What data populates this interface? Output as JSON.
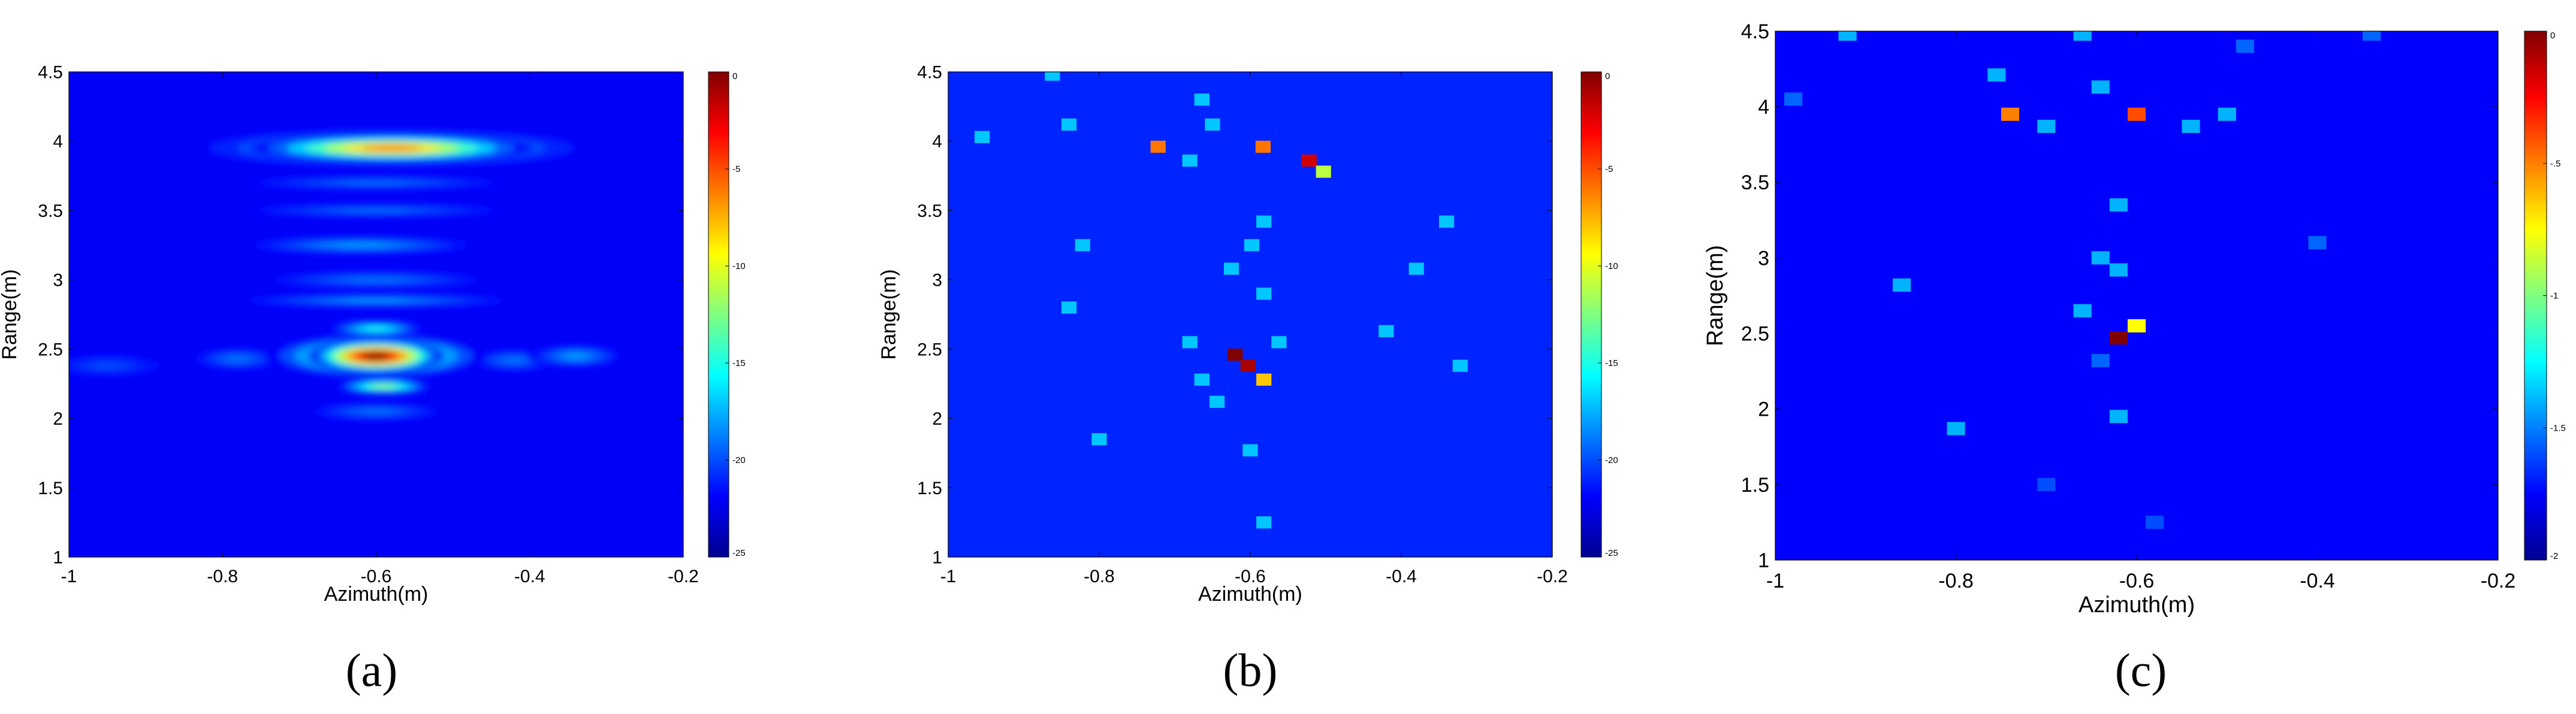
{
  "captions": [
    "(a)",
    "(b)",
    "(c)"
  ],
  "chart_data": [
    {
      "type": "heatmap",
      "title": "",
      "xlabel": "Azimuth(m)",
      "ylabel": "Range(m)",
      "xlim": [
        -1,
        -0.2
      ],
      "ylim": [
        1,
        4.5
      ],
      "xticks": [
        -1,
        -0.8,
        -0.6,
        -0.4,
        -0.2
      ],
      "xtick_labels": [
        "-1",
        "-0.8",
        "-0.6",
        "-0.4",
        "-0.2"
      ],
      "yticks": [
        1,
        1.5,
        2,
        2.5,
        3,
        3.5,
        4,
        4.5
      ],
      "ytick_labels": [
        "1",
        "1.5",
        "2",
        "2.5",
        "3",
        "3.5",
        "4",
        "4.5"
      ],
      "colorbar": {
        "range": [
          -25,
          0
        ],
        "colormap": "jet",
        "ticks": [
          0,
          -5,
          -10,
          -15,
          -20,
          -25
        ],
        "tick_labels": [
          "0",
          "-5",
          "-10",
          "-15",
          "-20",
          "-25"
        ]
      },
      "background_db": -22,
      "blobs": [
        {
          "x": -0.6,
          "y": 2.45,
          "sx": 0.055,
          "sy": 0.075,
          "db": 0
        },
        {
          "x": -0.6,
          "y": 2.45,
          "sx": 0.09,
          "sy": 0.1,
          "db": -10
        },
        {
          "x": -0.59,
          "y": 2.23,
          "sx": 0.04,
          "sy": 0.035,
          "db": -12
        },
        {
          "x": -0.6,
          "y": 2.65,
          "sx": 0.04,
          "sy": 0.035,
          "db": -15
        },
        {
          "x": -0.58,
          "y": 3.95,
          "sx": 0.115,
          "sy": 0.06,
          "db": -6
        },
        {
          "x": -0.58,
          "y": 3.95,
          "sx": 0.17,
          "sy": 0.09,
          "db": -16
        },
        {
          "x": -0.62,
          "y": 3.25,
          "sx": 0.1,
          "sy": 0.04,
          "db": -18
        },
        {
          "x": -0.6,
          "y": 3.0,
          "sx": 0.1,
          "sy": 0.04,
          "db": -19
        },
        {
          "x": -0.6,
          "y": 2.85,
          "sx": 0.12,
          "sy": 0.03,
          "db": -18
        },
        {
          "x": -0.34,
          "y": 2.45,
          "sx": 0.04,
          "sy": 0.05,
          "db": -18
        },
        {
          "x": -0.42,
          "y": 2.42,
          "sx": 0.04,
          "sy": 0.05,
          "db": -19
        },
        {
          "x": -0.78,
          "y": 2.43,
          "sx": 0.04,
          "sy": 0.05,
          "db": -19
        },
        {
          "x": -0.95,
          "y": 2.38,
          "sx": 0.05,
          "sy": 0.05,
          "db": -20
        },
        {
          "x": -0.6,
          "y": 2.05,
          "sx": 0.06,
          "sy": 0.04,
          "db": -19
        },
        {
          "x": -0.6,
          "y": 3.5,
          "sx": 0.12,
          "sy": 0.03,
          "db": -19
        },
        {
          "x": -0.6,
          "y": 3.7,
          "sx": 0.12,
          "sy": 0.03,
          "db": -19
        }
      ]
    },
    {
      "type": "heatmap",
      "title": "",
      "xlabel": "Azimuth(m)",
      "ylabel": "Range(m)",
      "xlim": [
        -1,
        -0.2
      ],
      "ylim": [
        1,
        4.5
      ],
      "xticks": [
        -1,
        -0.8,
        -0.6,
        -0.4,
        -0.2
      ],
      "xtick_labels": [
        "-1",
        "-0.8",
        "-0.6",
        "-0.4",
        "-0.2"
      ],
      "yticks": [
        1,
        1.5,
        2,
        2.5,
        3,
        3.5,
        4,
        4.5
      ],
      "ytick_labels": [
        "1",
        "1.5",
        "2",
        "2.5",
        "3",
        "3.5",
        "4",
        "4.5"
      ],
      "colorbar": {
        "range": [
          -25,
          0
        ],
        "colormap": "jet",
        "ticks": [
          0,
          -5,
          -10,
          -15,
          -20,
          -25
        ],
        "tick_labels": [
          "0",
          "-5",
          "-10",
          "-15",
          "-20",
          "-25"
        ]
      },
      "background_db": -21,
      "points": [
        {
          "x": -0.862,
          "y": 4.48,
          "db": -17
        },
        {
          "x": -0.664,
          "y": 4.3,
          "db": -17
        },
        {
          "x": -0.84,
          "y": 4.12,
          "db": -17
        },
        {
          "x": -0.65,
          "y": 4.12,
          "db": -17
        },
        {
          "x": -0.955,
          "y": 4.03,
          "db": -17
        },
        {
          "x": -0.722,
          "y": 3.96,
          "db": -6
        },
        {
          "x": -0.583,
          "y": 3.96,
          "db": -6
        },
        {
          "x": -0.68,
          "y": 3.86,
          "db": -17
        },
        {
          "x": -0.522,
          "y": 3.86,
          "db": -2
        },
        {
          "x": -0.503,
          "y": 3.78,
          "db": -11
        },
        {
          "x": -0.582,
          "y": 3.42,
          "db": -17
        },
        {
          "x": -0.34,
          "y": 3.42,
          "db": -17
        },
        {
          "x": -0.822,
          "y": 3.25,
          "db": -17
        },
        {
          "x": -0.598,
          "y": 3.25,
          "db": -17
        },
        {
          "x": -0.625,
          "y": 3.08,
          "db": -17
        },
        {
          "x": -0.38,
          "y": 3.08,
          "db": -17
        },
        {
          "x": -0.582,
          "y": 2.9,
          "db": -17
        },
        {
          "x": -0.84,
          "y": 2.8,
          "db": -17
        },
        {
          "x": -0.42,
          "y": 2.63,
          "db": -17
        },
        {
          "x": -0.68,
          "y": 2.55,
          "db": -17
        },
        {
          "x": -0.562,
          "y": 2.55,
          "db": -17
        },
        {
          "x": -0.62,
          "y": 2.46,
          "db": 0
        },
        {
          "x": -0.603,
          "y": 2.38,
          "db": -1
        },
        {
          "x": -0.322,
          "y": 2.38,
          "db": -17
        },
        {
          "x": -0.664,
          "y": 2.28,
          "db": -17
        },
        {
          "x": -0.582,
          "y": 2.28,
          "db": -8
        },
        {
          "x": -0.644,
          "y": 2.12,
          "db": -17
        },
        {
          "x": -0.8,
          "y": 1.85,
          "db": -17
        },
        {
          "x": -0.6,
          "y": 1.77,
          "db": -17
        },
        {
          "x": -0.582,
          "y": 1.25,
          "db": -17
        }
      ]
    },
    {
      "type": "heatmap",
      "title": "",
      "xlabel": "Azimuth(m)",
      "ylabel": "Range(m)",
      "xlim": [
        -1,
        -0.2
      ],
      "ylim": [
        1,
        4.5
      ],
      "xticks": [
        -1,
        -0.8,
        -0.6,
        -0.4,
        -0.2
      ],
      "xtick_labels": [
        "-1",
        "-0.8",
        "-0.6",
        "-0.4",
        "-0.2"
      ],
      "yticks": [
        1,
        1.5,
        2,
        2.5,
        3,
        3.5,
        4,
        4.5
      ],
      "ytick_labels": [
        "1",
        "1.5",
        "2",
        "2.5",
        "3",
        "3.5",
        "4",
        "4.5"
      ],
      "colorbar": {
        "range": [
          -2,
          0
        ],
        "colormap": "jet",
        "ticks": [
          0,
          -0.5,
          -1,
          -1.5,
          -2
        ],
        "tick_labels": [
          "0",
          "-.5",
          "-1",
          "-1.5",
          "-2"
        ]
      },
      "background_db": -1.75,
      "points": [
        {
          "x": -0.92,
          "y": 4.48,
          "db": -1.4
        },
        {
          "x": -0.66,
          "y": 4.48,
          "db": -1.4
        },
        {
          "x": -0.34,
          "y": 4.48,
          "db": -1.55
        },
        {
          "x": -0.48,
          "y": 4.4,
          "db": -1.55
        },
        {
          "x": -0.755,
          "y": 4.21,
          "db": -1.4
        },
        {
          "x": -0.64,
          "y": 4.13,
          "db": -1.4
        },
        {
          "x": -0.98,
          "y": 4.05,
          "db": -1.55
        },
        {
          "x": -0.74,
          "y": 3.95,
          "db": -0.5
        },
        {
          "x": -0.6,
          "y": 3.95,
          "db": -0.4
        },
        {
          "x": -0.5,
          "y": 3.95,
          "db": -1.4
        },
        {
          "x": -0.7,
          "y": 3.87,
          "db": -1.4
        },
        {
          "x": -0.54,
          "y": 3.87,
          "db": -1.4
        },
        {
          "x": -0.62,
          "y": 3.35,
          "db": -1.4
        },
        {
          "x": -0.4,
          "y": 3.1,
          "db": -1.55
        },
        {
          "x": -0.64,
          "y": 3.0,
          "db": -1.4
        },
        {
          "x": -0.62,
          "y": 2.92,
          "db": -1.4
        },
        {
          "x": -0.86,
          "y": 2.82,
          "db": -1.4
        },
        {
          "x": -0.66,
          "y": 2.65,
          "db": -1.4
        },
        {
          "x": -0.6,
          "y": 2.55,
          "db": -0.75
        },
        {
          "x": -0.62,
          "y": 2.47,
          "db": 0
        },
        {
          "x": -0.64,
          "y": 2.32,
          "db": -1.55
        },
        {
          "x": -0.62,
          "y": 1.95,
          "db": -1.4
        },
        {
          "x": -0.8,
          "y": 1.87,
          "db": -1.4
        },
        {
          "x": -0.7,
          "y": 1.5,
          "db": -1.6
        },
        {
          "x": -0.58,
          "y": 1.25,
          "db": -1.6
        }
      ]
    }
  ]
}
